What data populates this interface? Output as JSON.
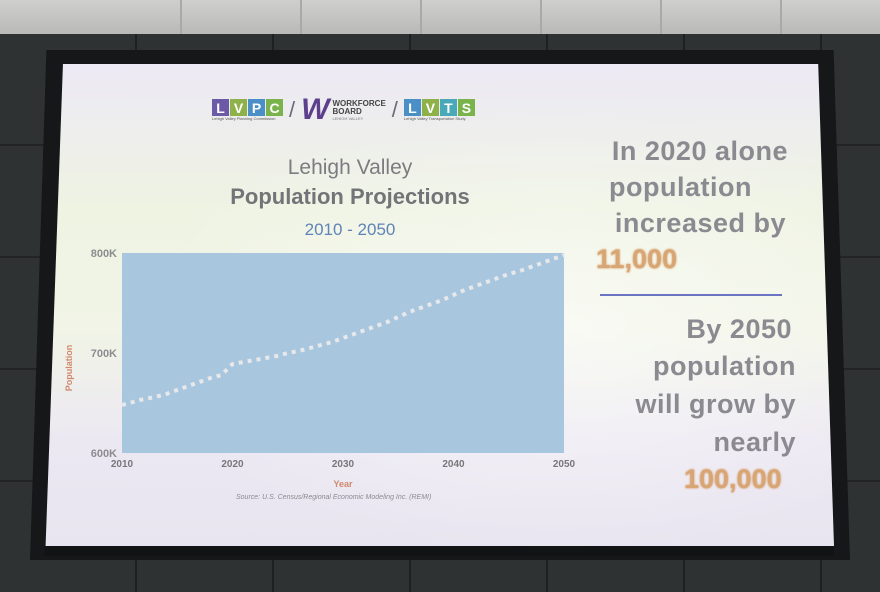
{
  "logos": {
    "lvpc": {
      "letters": [
        "L",
        "V",
        "P",
        "C"
      ],
      "colors": [
        "#6d5aa6",
        "#8fb14a",
        "#4a8fc6",
        "#7ab34c"
      ],
      "subtitle": "Lehigh Valley Planning Commission"
    },
    "workforce": {
      "mark": "W",
      "line1": "WORKFORCE",
      "line2": "BOARD",
      "subtitle": "LEHIGH VALLEY"
    },
    "lvts": {
      "letters": [
        "L",
        "V",
        "T",
        "S"
      ],
      "colors": [
        "#4a8fc6",
        "#8fb14a",
        "#4aa9b8",
        "#7ab34c"
      ],
      "subtitle": "Lehigh Valley Transportation Study"
    },
    "separator": "/"
  },
  "slide": {
    "title_line1": "Lehigh Valley",
    "title_line2": "Population Projections",
    "subtitle": "2010 - 2050",
    "source": "Source: U.S. Census/Regional Economic Modeling Inc. (REMI)",
    "stat1": {
      "line1": "In 2020 alone",
      "line2": "population",
      "line3": "increased by",
      "number": "11,000"
    },
    "stat2": {
      "line1": "By 2050",
      "line2": "population",
      "line3": "will grow by",
      "line4": "nearly",
      "number": "100,000"
    }
  },
  "chart_data": {
    "type": "line",
    "xlabel": "Year",
    "ylabel": "Population",
    "xlim": [
      2010,
      2050
    ],
    "ylim": [
      600000,
      800000
    ],
    "x_ticks": [
      "2010",
      "2020",
      "2030",
      "2040",
      "2050"
    ],
    "y_ticks": [
      "600K",
      "700K",
      "800K"
    ],
    "series": [
      {
        "x": [
          2010,
          2011,
          2012,
          2013,
          2014,
          2015,
          2016,
          2017,
          2018,
          2019,
          2020,
          2021,
          2022,
          2023,
          2024,
          2025,
          2026,
          2027,
          2028,
          2029,
          2030,
          2031,
          2032,
          2033,
          2034,
          2035,
          2036,
          2037,
          2038,
          2039,
          2040,
          2041,
          2042,
          2043,
          2044,
          2045,
          2046,
          2047,
          2048,
          2049,
          2050
        ],
        "values": [
          648000,
          651000,
          654000,
          656000,
          659000,
          663000,
          667000,
          671000,
          675000,
          678000,
          689000,
          691000,
          693000,
          695000,
          697000,
          700000,
          702000,
          705000,
          708000,
          711000,
          715000,
          719000,
          723000,
          727000,
          731000,
          736000,
          741000,
          745000,
          749000,
          753000,
          758000,
          763000,
          767000,
          771000,
          775000,
          779000,
          782000,
          786000,
          790000,
          794000,
          798000
        ],
        "color": "#e6e8ea",
        "style": "dotted"
      }
    ],
    "plot_background": "#a9c6df",
    "grid": false
  }
}
